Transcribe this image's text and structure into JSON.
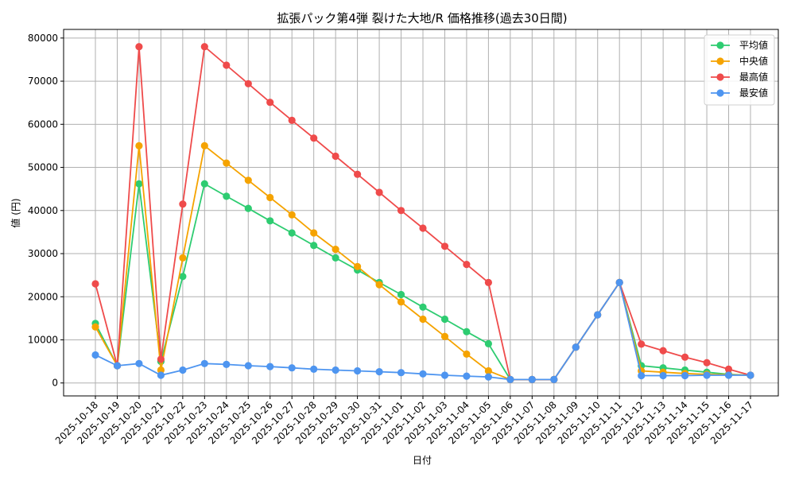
{
  "chart_data": {
    "type": "line",
    "title": "拡張パック第4弾 裂けた大地/R 価格推移(過去30日間)",
    "xlabel": "日付",
    "ylabel": "値 (円)",
    "ylim": [
      -3000,
      82000
    ],
    "yticks": [
      0,
      10000,
      20000,
      30000,
      40000,
      50000,
      60000,
      70000,
      80000
    ],
    "grid": true,
    "legend_position": "top-right",
    "categories": [
      "2025-10-18",
      "2025-10-19",
      "2025-10-20",
      "2025-10-21",
      "2025-10-22",
      "2025-10-23",
      "2025-10-24",
      "2025-10-25",
      "2025-10-26",
      "2025-10-27",
      "2025-10-28",
      "2025-10-29",
      "2025-10-30",
      "2025-10-31",
      "2025-11-01",
      "2025-11-02",
      "2025-11-03",
      "2025-11-04",
      "2025-11-05",
      "2025-11-06",
      "2025-11-07",
      "2025-11-08",
      "2025-11-09",
      "2025-11-10",
      "2025-11-11",
      "2025-11-12",
      "2025-11-13",
      "2025-11-14",
      "2025-11-15",
      "2025-11-16",
      "2025-11-17"
    ],
    "series": [
      {
        "name": "平均値",
        "color": "#2ecc71",
        "values": [
          13800,
          4000,
          46200,
          5000,
          24700,
          46200,
          43300,
          40500,
          37600,
          34800,
          31900,
          29000,
          26200,
          23300,
          20500,
          17600,
          14800,
          11900,
          9100,
          800,
          800,
          800,
          8300,
          15800,
          23300,
          4000,
          3500,
          3000,
          2500,
          2000,
          1800
        ]
      },
      {
        "name": "中央値",
        "color": "#f5a300",
        "values": [
          13000,
          4000,
          55000,
          3000,
          29000,
          55000,
          51000,
          47000,
          43000,
          39000,
          34800,
          31000,
          27000,
          22800,
          18800,
          14800,
          10800,
          6700,
          2800,
          800,
          800,
          800,
          8300,
          15800,
          23300,
          2800,
          2500,
          2200,
          2000,
          1900,
          1800
        ]
      },
      {
        "name": "最高値",
        "color": "#ef4b4b",
        "values": [
          23000,
          4000,
          78000,
          5500,
          41500,
          78000,
          73700,
          69400,
          65100,
          60900,
          56800,
          52600,
          48400,
          44200,
          40000,
          35900,
          31700,
          27500,
          23300,
          800,
          800,
          800,
          8300,
          15800,
          23300,
          9000,
          7500,
          6000,
          4700,
          3200,
          1800
        ]
      },
      {
        "name": "最安値",
        "color": "#4e95f0",
        "values": [
          6500,
          4000,
          4500,
          1800,
          3000,
          4500,
          4300,
          4000,
          3800,
          3500,
          3200,
          3000,
          2800,
          2600,
          2400,
          2100,
          1800,
          1600,
          1400,
          800,
          800,
          800,
          8300,
          15800,
          23300,
          1700,
          1700,
          1700,
          1800,
          1800,
          1800
        ]
      }
    ]
  }
}
